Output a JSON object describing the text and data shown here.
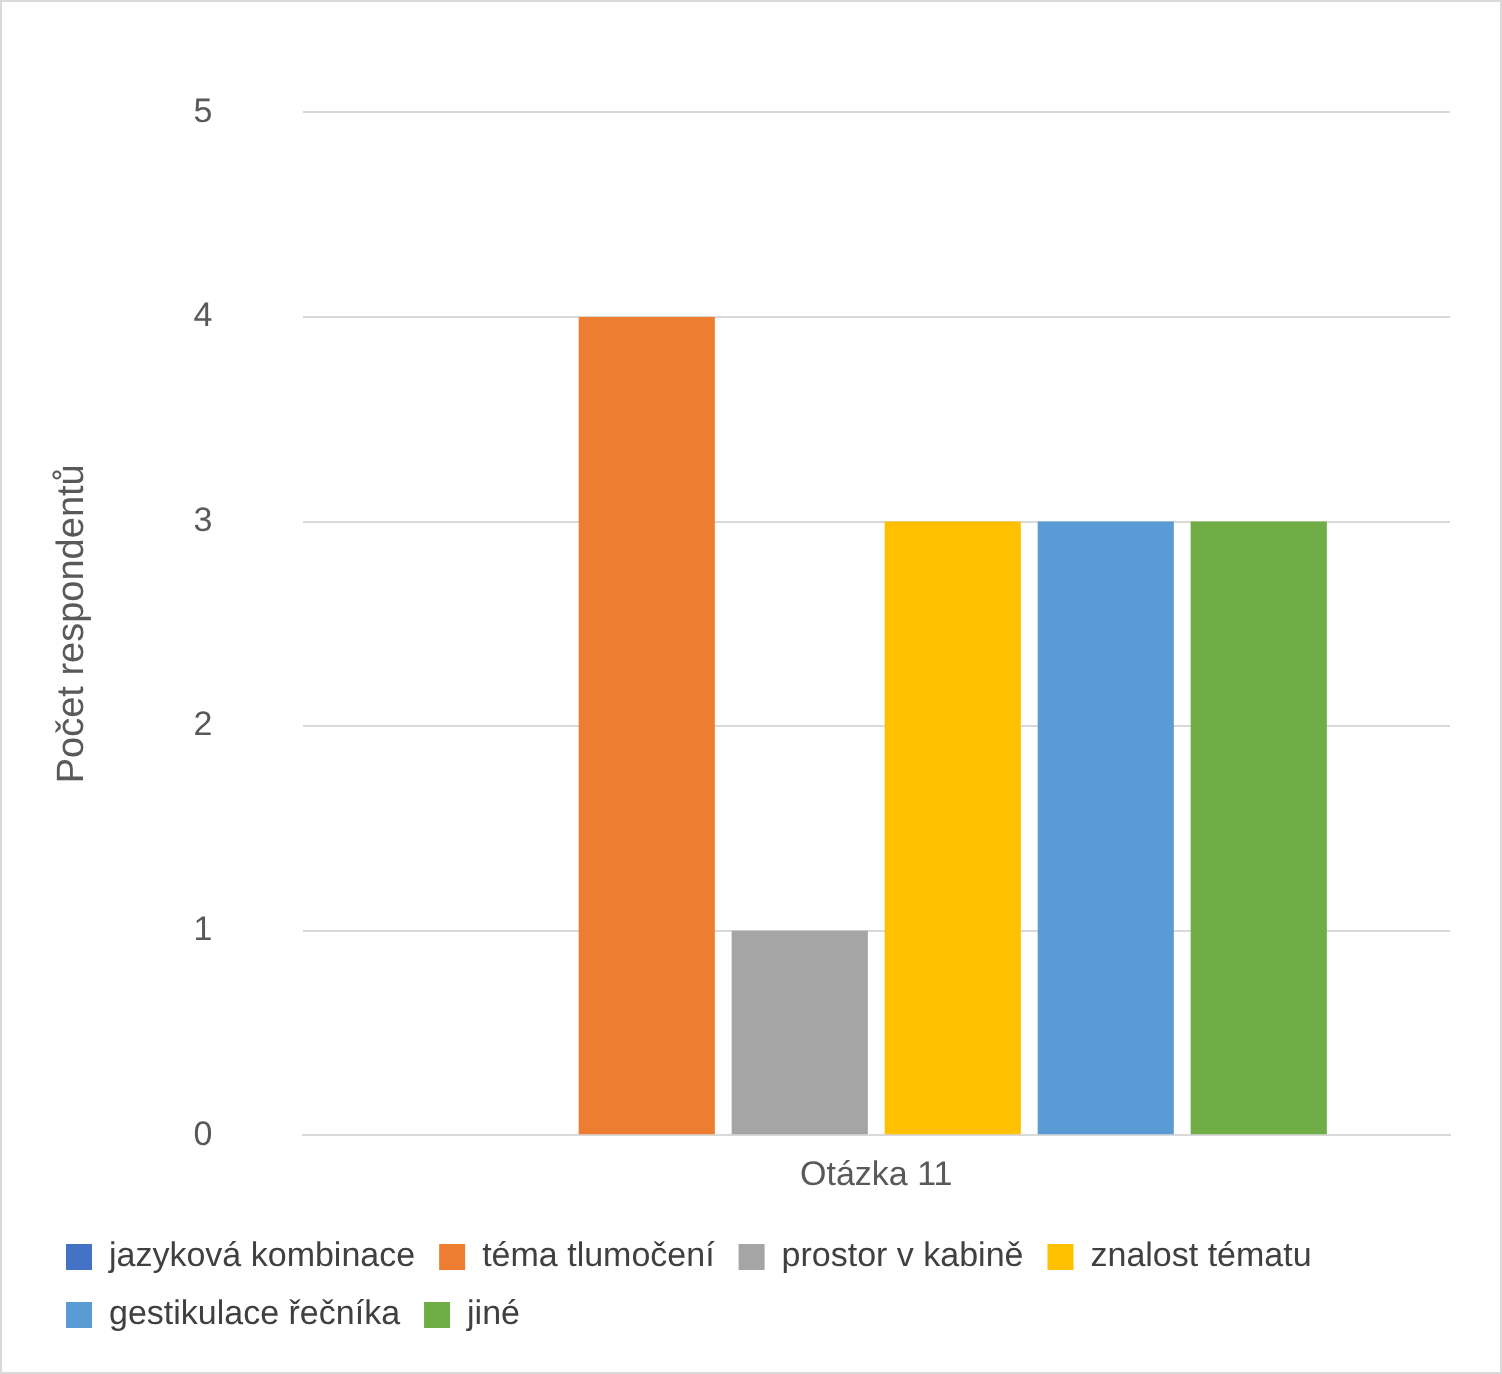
{
  "chart_data": {
    "type": "bar",
    "ylabel": "Počet respondentů",
    "categories": [
      "Otázka 11"
    ],
    "series": [
      {
        "name": "jazyková kombinace",
        "color": "#4472c4",
        "values": [
          0
        ]
      },
      {
        "name": "téma tlumočení",
        "color": "#ed7d31",
        "values": [
          4
        ]
      },
      {
        "name": "prostor v kabině",
        "color": "#a5a5a5",
        "values": [
          1
        ]
      },
      {
        "name": "znalost tématu",
        "color": "#ffc000",
        "values": [
          3
        ]
      },
      {
        "name": "gestikulace řečníka",
        "color": "#5b9bd5",
        "values": [
          3
        ]
      },
      {
        "name": "jiné",
        "color": "#70ad47",
        "values": [
          3
        ]
      }
    ],
    "ylim": [
      0,
      5
    ],
    "yticks": [
      0,
      1,
      2,
      3,
      4,
      5
    ],
    "grid": "y",
    "legend": "bottom"
  }
}
